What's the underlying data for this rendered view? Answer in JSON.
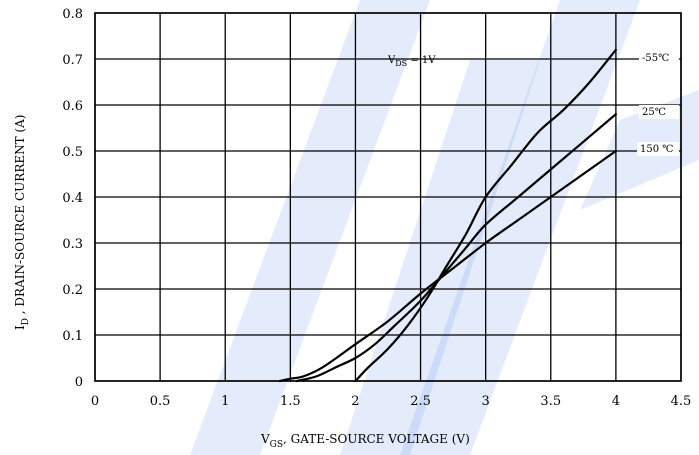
{
  "colors": {
    "watermark": "#2f6fe0",
    "line": "#000000",
    "grid": "#000000",
    "background": "#ffffff"
  },
  "chart_data": {
    "type": "line",
    "title": "",
    "xlim": [
      0,
      4.5
    ],
    "ylim": [
      0,
      0.8
    ],
    "grid": true,
    "legend": "none",
    "x_ticks": [
      "0",
      "0.5",
      "1",
      "1.5",
      "2",
      "2.5",
      "3",
      "3.5",
      "4",
      "4.5"
    ],
    "y_ticks": [
      "0",
      "0.1",
      "0.2",
      "0.3",
      "0.4",
      "0.5",
      "0.6",
      "0.7",
      "0.8"
    ],
    "xlabel": {
      "main": "V",
      "sub": "GS",
      "rest": ",  GATE-SOURCE VOLTAGE (V)"
    },
    "ylabel": {
      "main": "I",
      "sub": "D",
      "rest": " ,  DRAIN-SOURCE CURRENT (A)"
    },
    "annotation": {
      "main": "V",
      "sub": "DS",
      "rest": "  =  1V"
    },
    "series": [
      {
        "name": "-55℃",
        "x": [
          2.0,
          2.1,
          2.25,
          2.4,
          2.55,
          2.7,
          2.85,
          3.0,
          3.2,
          3.4,
          3.6,
          3.8,
          4.0
        ],
        "y": [
          0.0,
          0.03,
          0.07,
          0.12,
          0.18,
          0.25,
          0.32,
          0.4,
          0.47,
          0.54,
          0.59,
          0.65,
          0.72
        ]
      },
      {
        "name": "25℃",
        "x": [
          1.55,
          1.7,
          1.85,
          2.0,
          2.15,
          2.3,
          2.45,
          2.55,
          2.7,
          2.85,
          3.0,
          3.25,
          3.5,
          3.75,
          4.0
        ],
        "y": [
          0.0,
          0.01,
          0.03,
          0.05,
          0.08,
          0.12,
          0.16,
          0.19,
          0.24,
          0.29,
          0.34,
          0.4,
          0.46,
          0.52,
          0.58
        ]
      },
      {
        "name": "150 ℃",
        "x": [
          1.42,
          1.5,
          1.6,
          1.75,
          2.0,
          2.25,
          2.5,
          2.75,
          3.0,
          3.25,
          3.5,
          3.75,
          4.0
        ],
        "y": [
          0.0,
          0.005,
          0.01,
          0.03,
          0.08,
          0.13,
          0.19,
          0.245,
          0.3,
          0.35,
          0.4,
          0.45,
          0.5
        ]
      }
    ]
  }
}
